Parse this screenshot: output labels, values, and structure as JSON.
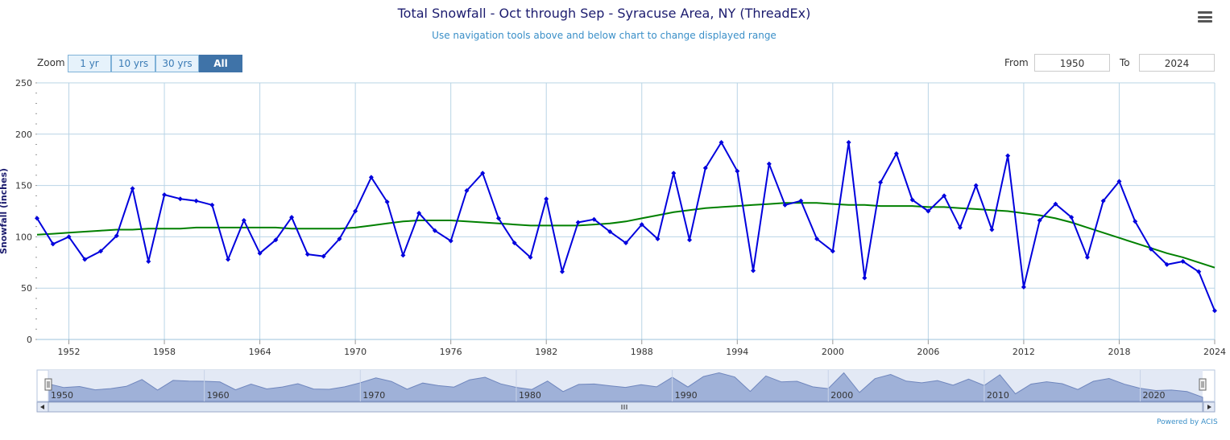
{
  "title": "Total Snowfall - Oct through Sep - Syracuse Area, NY (ThreadEx)",
  "subtitle": "Use navigation tools above and below chart to change displayed range",
  "zoom": {
    "label": "Zoom",
    "buttons": [
      "1 yr",
      "10 yrs",
      "30 yrs",
      "All"
    ],
    "active": "All"
  },
  "range": {
    "from_label": "From",
    "from_value": "1950",
    "to_label": "To",
    "to_value": "2024"
  },
  "credit": "Powered by ACIS",
  "colors": {
    "series": "#0000dd",
    "trend": "#008000",
    "grid": "#b9d4e6",
    "navigator_fill": "#9fb1d8"
  },
  "chart_data": {
    "type": "line",
    "title": "Total Snowfall - Oct through Sep - Syracuse Area, NY (ThreadEx)",
    "ylabel": "Snowfall (inches)",
    "ylim": [
      0,
      250
    ],
    "xlim": [
      1950,
      2024
    ],
    "yticks": [
      0,
      50,
      100,
      150,
      200,
      250
    ],
    "xticks": [
      1952,
      1958,
      1964,
      1970,
      1976,
      1982,
      1988,
      1994,
      2000,
      2006,
      2012,
      2018,
      2024
    ],
    "grid": true,
    "series": [
      {
        "x": [
          1950,
          1951,
          1952,
          1953,
          1954,
          1955,
          1956,
          1957,
          1958,
          1959,
          1960,
          1961,
          1962,
          1963,
          1964,
          1965,
          1966,
          1967,
          1968,
          1969,
          1970,
          1971,
          1972,
          1973,
          1974,
          1975,
          1976,
          1977,
          1978,
          1979,
          1980,
          1981,
          1982,
          1983,
          1984,
          1985,
          1986,
          1987,
          1988,
          1989,
          1990,
          1991,
          1992,
          1993,
          1994,
          1995,
          1996,
          1997,
          1998,
          1999,
          2000,
          2001,
          2002,
          2003,
          2004,
          2005,
          2006,
          2007,
          2008,
          2009,
          2010,
          2011,
          2012,
          2013,
          2014,
          2015,
          2016,
          2017,
          2018,
          2019,
          2020,
          2021,
          2022,
          2023,
          2024
        ],
        "values": [
          118,
          93,
          100,
          78,
          86,
          101,
          147,
          76,
          141,
          137,
          135,
          131,
          78,
          116,
          84,
          97,
          119,
          83,
          81,
          98,
          125,
          158,
          134,
          82,
          123,
          106,
          96,
          145,
          162,
          118,
          94,
          80,
          137,
          66,
          114,
          117,
          105,
          94,
          112,
          98,
          162,
          97,
          167,
          192,
          164,
          67,
          171,
          131,
          135,
          98,
          86,
          192,
          60,
          153,
          181,
          136,
          125,
          140,
          109,
          150,
          107,
          179,
          51,
          116,
          132,
          119,
          80,
          135,
          154,
          115,
          88,
          73,
          76,
          66,
          28
        ]
      },
      {
        "values": [
          102,
          103,
          104,
          105,
          106,
          107,
          107,
          108,
          108,
          108,
          109,
          109,
          109,
          109,
          109,
          109,
          108,
          108,
          108,
          108,
          109,
          111,
          113,
          115,
          116,
          116,
          116,
          115,
          114,
          113,
          112,
          111,
          111,
          111,
          111,
          112,
          113,
          115,
          118,
          121,
          124,
          126,
          128,
          129,
          130,
          131,
          132,
          133,
          133,
          133,
          132,
          131,
          131,
          130,
          130,
          130,
          129,
          129,
          128,
          127,
          126,
          125,
          123,
          121,
          118,
          114,
          109,
          104,
          99,
          94,
          89,
          84,
          80,
          75,
          70
        ]
      }
    ],
    "navigator_ticks": [
      1950,
      1960,
      1970,
      1980,
      1990,
      2000,
      2010,
      2020
    ]
  }
}
